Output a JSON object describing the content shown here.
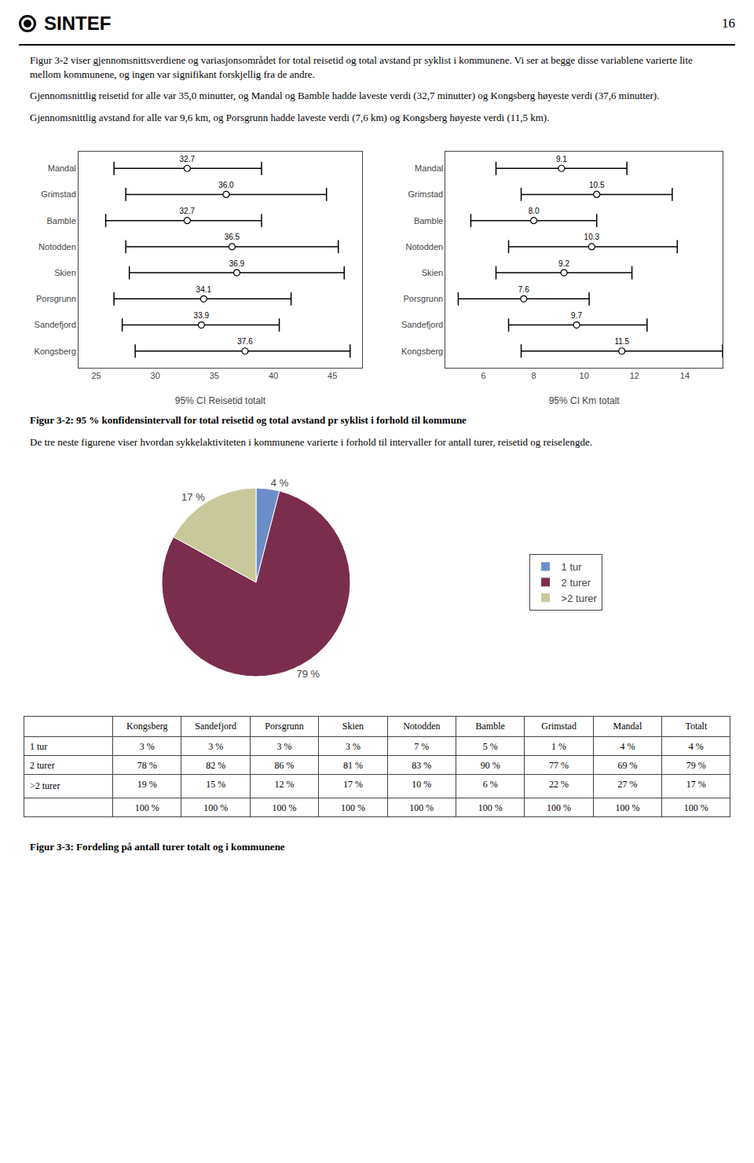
{
  "page": {
    "header": "SINTEF",
    "page_num": "16",
    "paragraphs": [
      "Figur 3-2 viser gjennomsnittsverdiene og variasjonsområdet for total reisetid og total avstand pr syklist i kommunene. Vi ser at begge disse variablene varierte lite mellom kommunene, og ingen var signifikant forskjellig fra de andre.",
      "Gjennomsnittlig reisetid for alle var 35,0 minutter, og Mandal og Bamble hadde laveste verdi (32,7 minutter) og Kongsberg høyeste verdi (37,6 minutter).",
      "Gjennomsnittlig avstand for alle var 9,6 km, og Porsgrunn hadde laveste verdi (7,6 km) og Kongsberg høyeste verdi (11,5 km).",
      "De tre neste figurene viser hvordan sykkelaktiviteten i kommunene varierte i forhold til intervaller for antall turer, reisetid og reiselengde."
    ],
    "captions": [
      "Figur 3-2: 95 % konfidensintervall for total reisetid og total avstand pr syklist i forhold til kommune",
      "Figur 3-3: Fordeling på antall turer totalt og i kommunene"
    ]
  },
  "chart_data": [
    {
      "type": "scatter",
      "orientation": "horizontal",
      "categories": [
        "Mandal",
        "Grimstad",
        "Bamble",
        "Notodden",
        "Skien",
        "Porsgrunn",
        "Sandefjord",
        "Kongsberg"
      ],
      "values": [
        32.7,
        36.0,
        32.7,
        36.5,
        36.9,
        34.1,
        33.9,
        37.6
      ],
      "value_labels": [
        "32.7",
        "36.0",
        "32.7",
        "36.5",
        "36.9",
        "34.1",
        "33.9",
        "37.6"
      ],
      "ci_low": [
        26.5,
        27.5,
        25.8,
        27.5,
        27.8,
        26.5,
        27.2,
        28.3
      ],
      "ci_high": [
        39.0,
        44.5,
        39.0,
        45.5,
        46.0,
        41.5,
        40.5,
        46.5
      ],
      "xlabel": "95% CI Reisetid totalt",
      "xlim": [
        23.5,
        47.5
      ],
      "xticks": [
        25,
        30,
        35,
        40,
        45
      ],
      "color": "#000000",
      "data_labels": true,
      "grid": false
    },
    {
      "type": "scatter",
      "orientation": "horizontal",
      "categories": [
        "Mandal",
        "Grimstad",
        "Bamble",
        "Notodden",
        "Skien",
        "Porsgrunn",
        "Sandefjord",
        "Kongsberg"
      ],
      "values": [
        9.1,
        10.5,
        8.0,
        10.3,
        9.2,
        7.6,
        9.7,
        11.5
      ],
      "value_labels": [
        "9.1",
        "10.5",
        "8.0",
        "10.3",
        "9.2",
        "7.6",
        "9.7",
        "11.5"
      ],
      "ci_low": [
        6.5,
        7.5,
        5.5,
        7.0,
        6.5,
        5.0,
        7.0,
        7.5
      ],
      "ci_high": [
        11.7,
        13.5,
        10.5,
        13.7,
        11.9,
        10.2,
        12.5,
        15.5
      ],
      "xlabel": "95% CI Km totalt",
      "xlim": [
        4.5,
        15.5
      ],
      "xticks": [
        6,
        8,
        10,
        12,
        14
      ],
      "color": "#000000",
      "data_labels": true,
      "grid": false
    },
    {
      "type": "pie",
      "categories": [
        "1 tur",
        "2 turer",
        ">2 turer"
      ],
      "values": [
        4,
        79,
        17
      ],
      "value_labels": [
        "4 %",
        "79 %",
        "17 %"
      ],
      "colors": [
        "#6B8EC8",
        "#7B2D4E",
        "#C8C89A"
      ],
      "data_labels": true,
      "legend": "right"
    },
    {
      "type": "table",
      "columns": [
        null,
        "Kongsberg",
        "Sandefjord",
        "Porsgrunn",
        "Skien",
        "Notodden",
        "Bamble",
        "Grimstad",
        "Mandal",
        "Totalt"
      ],
      "rows": [
        [
          "1 tur",
          "3 %",
          "3 %",
          "3 %",
          "3 %",
          "7 %",
          "5 %",
          "1 %",
          "4 %",
          "4 %"
        ],
        [
          "2 turer",
          "78 %",
          "82 %",
          "86 %",
          "81 %",
          "83 %",
          "90 %",
          "77 %",
          "69 %",
          "79 %"
        ],
        [
          ">2 turer",
          "19 %",
          "15 %",
          "12 %",
          "17 %",
          "10 %",
          "6 %",
          "22 %",
          "27 %",
          "17 %"
        ],
        [
          null,
          "100 %",
          "100 %",
          "100 %",
          "100 %",
          "100 %",
          "100 %",
          "100 %",
          "100 %",
          "100 %"
        ]
      ]
    }
  ]
}
